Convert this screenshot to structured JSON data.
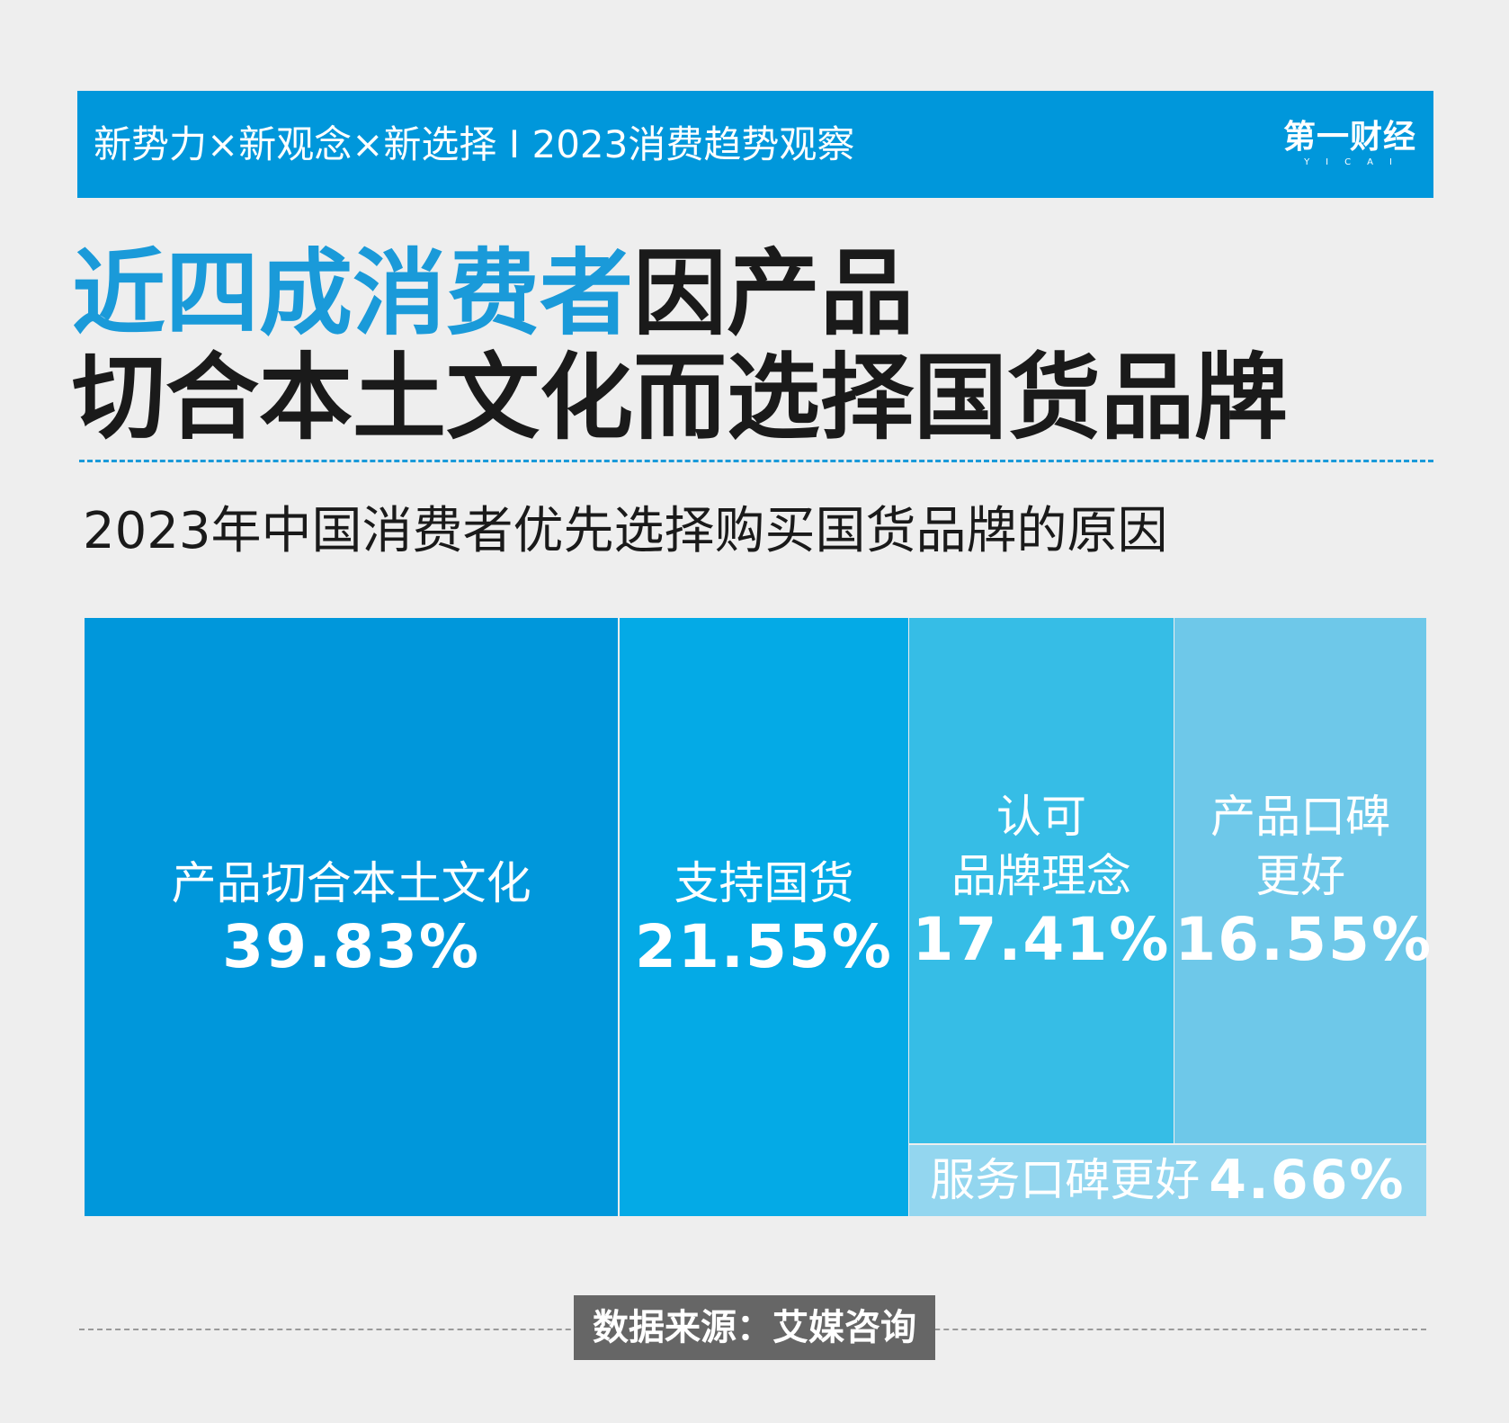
{
  "banner": {
    "text": "新势力×新观念×新选择 I 2023消费趋势观察",
    "logo_main": "第一财经",
    "logo_sub": "YICAI"
  },
  "headline": {
    "accent": "近四成消费者",
    "rest_line1": "因产品",
    "line2": "切合本土文化而选择国货品牌"
  },
  "colors": {
    "banner_bg": "#0097db",
    "tile_1": "#0097db",
    "tile_2": "#04aae6",
    "tile_3": "#36bde6",
    "tile_4": "#6ec8e9",
    "tile_5": "#93d6ef"
  },
  "footer": {
    "source": "数据来源：艾媒咨询"
  },
  "chart_data": {
    "type": "treemap",
    "title": "2023年中国消费者优先选择购买国货品牌的原因",
    "items": [
      {
        "label": "产品切合本土文化",
        "value": 39.83,
        "value_text": "39.83%"
      },
      {
        "label": "支持国货",
        "value": 21.55,
        "value_text": "21.55%"
      },
      {
        "label": "认可\n品牌理念",
        "value": 17.41,
        "value_text": "17.41%"
      },
      {
        "label": "产品口碑\n更好",
        "value": 16.55,
        "value_text": "16.55%"
      },
      {
        "label": "服务口碑更好",
        "value": 4.66,
        "value_text": "4.66%"
      }
    ]
  }
}
